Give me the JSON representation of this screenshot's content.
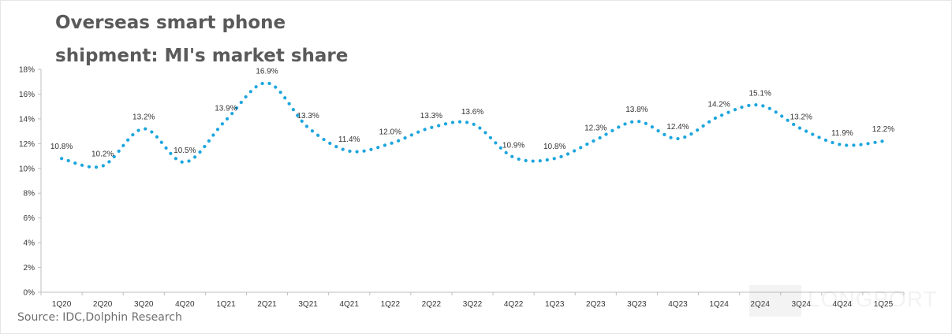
{
  "title_line1": "Overseas smart phone",
  "title_line2": "shipment: MI's market share",
  "source": "Source: IDC,Dolphin Research",
  "watermark": "LONGPORT",
  "chart_data": {
    "type": "line",
    "title": "Overseas smart phone shipment: MI's market share",
    "categories": [
      "1Q20",
      "2Q20",
      "3Q20",
      "4Q20",
      "1Q21",
      "2Q21",
      "3Q21",
      "4Q21",
      "1Q22",
      "2Q22",
      "3Q22",
      "4Q22",
      "1Q23",
      "2Q23",
      "3Q23",
      "4Q23",
      "1Q24",
      "2Q24",
      "3Q24",
      "4Q24",
      "1Q25"
    ],
    "values": [
      10.8,
      10.2,
      13.2,
      10.5,
      13.9,
      16.9,
      13.3,
      11.4,
      12.0,
      13.3,
      13.6,
      10.9,
      10.8,
      12.3,
      13.8,
      12.4,
      14.2,
      15.1,
      13.2,
      11.9,
      12.2
    ],
    "data_labels": [
      "10.8%",
      "10.2%",
      "13.2%",
      "10.5%",
      "13.9%",
      "16.9%",
      "13.3%",
      "11.4%",
      "12.0%",
      "13.3%",
      "13.6%",
      "10.9%",
      "10.8%",
      "12.3%",
      "13.8%",
      "12.4%",
      "14.2%",
      "15.1%",
      "13.2%",
      "11.9%",
      "12.2%"
    ],
    "y_ticks": [
      0,
      2,
      4,
      6,
      8,
      10,
      12,
      14,
      16,
      18
    ],
    "y_tick_labels": [
      "0%",
      "2%",
      "4%",
      "6%",
      "8%",
      "10%",
      "12%",
      "14%",
      "16%",
      "18%"
    ],
    "ylim": [
      0,
      18
    ],
    "line_style": "dotted, smoothed",
    "line_color": "#1CA6DE",
    "grid": false,
    "legend": "none",
    "xlabel": "",
    "ylabel": ""
  }
}
